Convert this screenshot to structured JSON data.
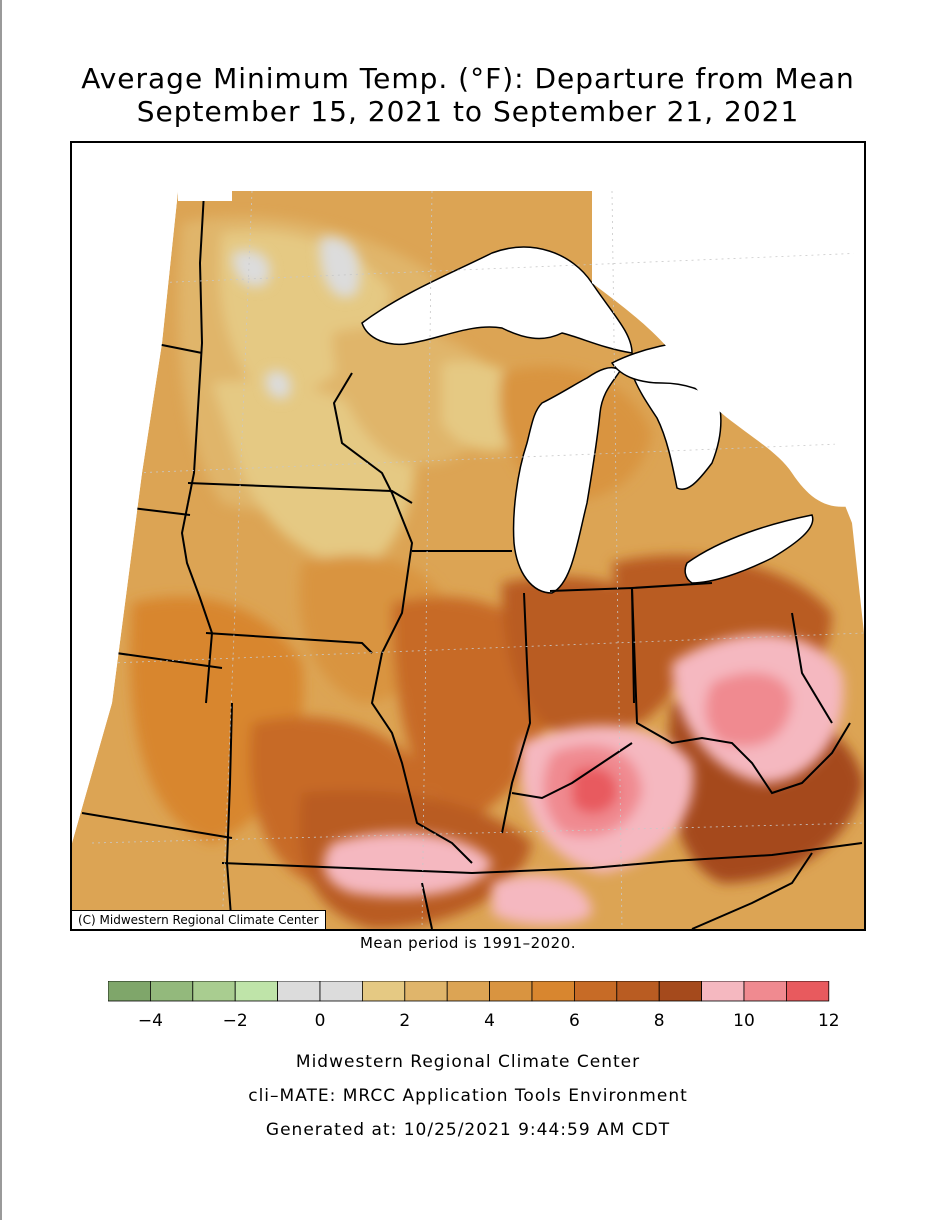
{
  "title": {
    "line1": "Average Minimum Temp. (°F): Departure from Mean",
    "line2": "September 15, 2021 to September 21, 2021"
  },
  "map": {
    "copyright": "(C) Midwestern Regional Climate Center",
    "region": "Midwest United States",
    "ocean_lakes_color": "#ffffff"
  },
  "mean_note": "Mean period is 1991–2020.",
  "colorbar": {
    "bins": [
      {
        "min": -5,
        "max": -4,
        "color": "#7fa66a"
      },
      {
        "min": -4,
        "max": -3,
        "color": "#93b97c"
      },
      {
        "min": -3,
        "max": -2,
        "color": "#a9cd90"
      },
      {
        "min": -2,
        "max": -1,
        "color": "#bfe4a9"
      },
      {
        "min": -1,
        "max": 0,
        "color": "#dcdcdc"
      },
      {
        "min": 0,
        "max": 1,
        "color": "#dcdcdc"
      },
      {
        "min": 1,
        "max": 2,
        "color": "#e5c983"
      },
      {
        "min": 2,
        "max": 3,
        "color": "#e0b56b"
      },
      {
        "min": 3,
        "max": 4,
        "color": "#dca454"
      },
      {
        "min": 4,
        "max": 5,
        "color": "#d99440"
      },
      {
        "min": 5,
        "max": 6,
        "color": "#d8862f"
      },
      {
        "min": 6,
        "max": 7,
        "color": "#c76b26"
      },
      {
        "min": 7,
        "max": 8,
        "color": "#b95c22"
      },
      {
        "min": 8,
        "max": 9,
        "color": "#a54a1c"
      },
      {
        "min": 9,
        "max": 10,
        "color": "#f5b8c0"
      },
      {
        "min": 10,
        "max": 11,
        "color": "#f08a90"
      },
      {
        "min": 11,
        "max": 12,
        "color": "#e85a5e"
      }
    ],
    "tick_labels": [
      "−4",
      "−2",
      "0",
      "2",
      "4",
      "6",
      "8",
      "10",
      "12"
    ],
    "tick_values": [
      -4,
      -2,
      0,
      2,
      4,
      6,
      8,
      10,
      12
    ]
  },
  "footer": {
    "line1": "Midwestern Regional Climate Center",
    "line2": "cli–MATE: MRCC Application Tools Environment",
    "line3": "Generated at: 10/25/2021 9:44:59 AM CDT"
  }
}
